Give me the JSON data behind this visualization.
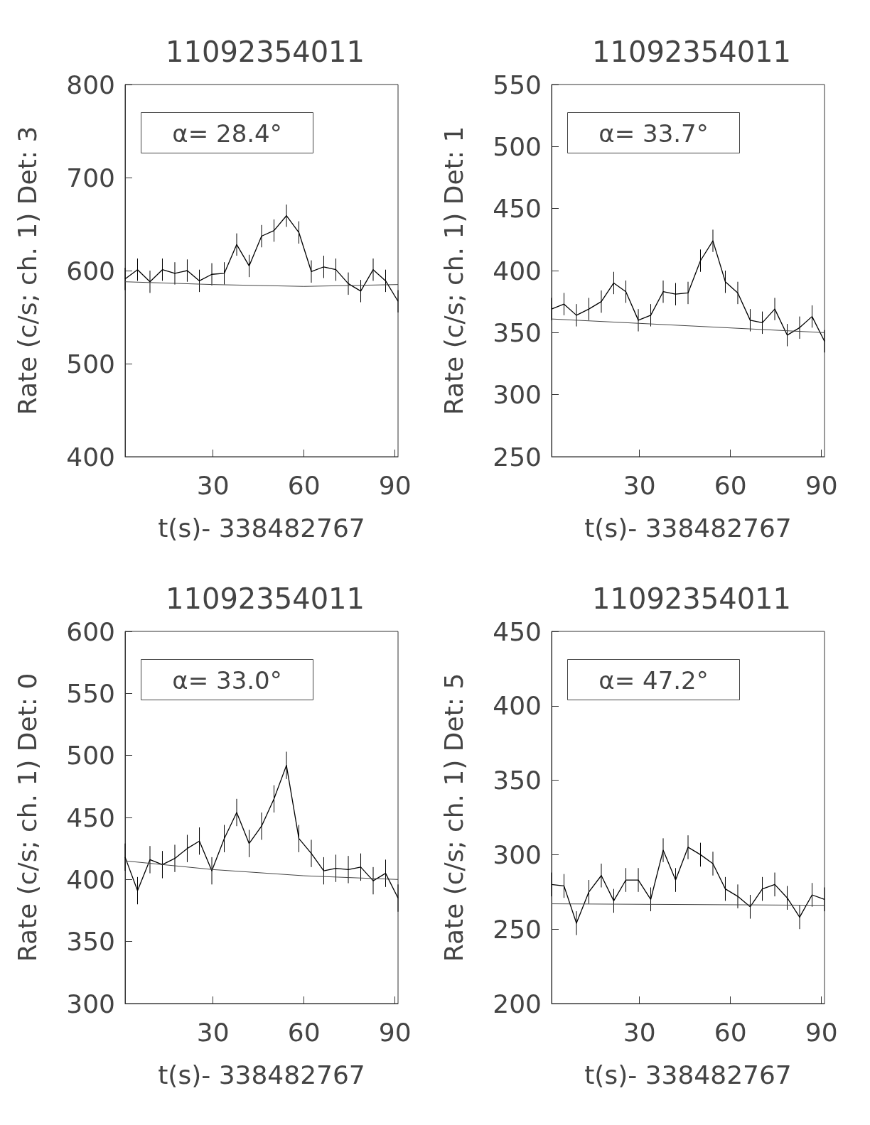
{
  "chart_data": [
    {
      "type": "line",
      "title": "11092354011",
      "xlabel": "t(s)- 338482767",
      "ylabel": "Rate (c/s; ch. 1) Det: 3",
      "annotations": [
        "α= 28.4°"
      ],
      "xlim": [
        1,
        91
      ],
      "xticks": [
        30,
        60,
        90
      ],
      "ylim": [
        400,
        800
      ],
      "yticks": [
        400,
        500,
        600,
        700,
        800
      ],
      "grid": false,
      "marker": "none",
      "line_style": "solid",
      "x": [
        1,
        5.1,
        9.2,
        13.3,
        17.4,
        21.5,
        25.5,
        29.6,
        33.7,
        37.8,
        41.9,
        46,
        50.1,
        54.2,
        58.3,
        62.4,
        66.5,
        70.5,
        74.6,
        78.7,
        82.8,
        86.9,
        91
      ],
      "series": [
        {
          "color": "#000000",
          "values": [
            591,
            601,
            588,
            601,
            597,
            600,
            589,
            596,
            597,
            628,
            605,
            637,
            643,
            659,
            641,
            599,
            604,
            601,
            586,
            578,
            601,
            589,
            567
          ],
          "errors": [
            12,
            12,
            12,
            12,
            12,
            12,
            12,
            12,
            12,
            12,
            12,
            12,
            12,
            12,
            12,
            12,
            12,
            12,
            12,
            12,
            12,
            12,
            12
          ]
        },
        {
          "type": "line",
          "color": "#444444",
          "x": [
            1,
            30,
            60,
            91
          ],
          "values": [
            588,
            585,
            583,
            585
          ]
        }
      ]
    },
    {
      "type": "line",
      "title": "11092354011",
      "xlabel": "t(s)- 338482767",
      "ylabel": "Rate (c/s; ch. 1) Det: 1",
      "annotations": [
        "α= 33.7°"
      ],
      "xlim": [
        1,
        91
      ],
      "xticks": [
        30,
        60,
        90
      ],
      "ylim": [
        250,
        550
      ],
      "yticks": [
        250,
        300,
        350,
        400,
        450,
        500,
        550
      ],
      "grid": false,
      "marker": "none",
      "line_style": "solid",
      "x": [
        1,
        5.1,
        9.2,
        13.3,
        17.4,
        21.5,
        25.5,
        29.6,
        33.7,
        37.8,
        41.9,
        46,
        50.1,
        54.2,
        58.3,
        62.4,
        66.5,
        70.5,
        74.6,
        78.7,
        82.8,
        86.9,
        91
      ],
      "series": [
        {
          "color": "#000000",
          "values": [
            369,
            373,
            364,
            369,
            375,
            390,
            383,
            360,
            364,
            383,
            381,
            382,
            408,
            424,
            391,
            382,
            360,
            358,
            369,
            348,
            354,
            363,
            343
          ],
          "errors": [
            9,
            9,
            9,
            9,
            9,
            9,
            9,
            9,
            9,
            9,
            9,
            9,
            9,
            9,
            9,
            9,
            9,
            9,
            9,
            9,
            9,
            9,
            9
          ]
        },
        {
          "type": "line",
          "color": "#444444",
          "x": [
            1,
            91
          ],
          "values": [
            361,
            350
          ]
        }
      ]
    },
    {
      "type": "line",
      "title": "11092354011",
      "xlabel": "t(s)- 338482767",
      "ylabel": "Rate (c/s; ch. 1) Det: 0",
      "annotations": [
        "α= 33.0°"
      ],
      "xlim": [
        1,
        91
      ],
      "xticks": [
        30,
        60,
        90
      ],
      "ylim": [
        300,
        600
      ],
      "yticks": [
        300,
        350,
        400,
        450,
        500,
        550,
        600
      ],
      "grid": false,
      "marker": "none",
      "line_style": "solid",
      "x": [
        1,
        5.1,
        9.2,
        13.3,
        17.4,
        21.5,
        25.5,
        29.6,
        33.7,
        37.8,
        41.9,
        46,
        50.1,
        54.2,
        58.3,
        62.4,
        66.5,
        70.5,
        74.6,
        78.7,
        82.8,
        86.9,
        91
      ],
      "series": [
        {
          "color": "#000000",
          "values": [
            418,
            391,
            416,
            412,
            417,
            425,
            431,
            407,
            433,
            454,
            429,
            443,
            465,
            492,
            433,
            421,
            407,
            409,
            408,
            410,
            399,
            405,
            385
          ],
          "errors": [
            11,
            11,
            11,
            11,
            11,
            11,
            11,
            11,
            11,
            11,
            11,
            11,
            11,
            11,
            11,
            11,
            11,
            11,
            11,
            11,
            11,
            11,
            11
          ]
        },
        {
          "type": "line",
          "color": "#444444",
          "x": [
            1,
            30,
            60,
            91
          ],
          "values": [
            415,
            408,
            403,
            400
          ]
        }
      ]
    },
    {
      "type": "line",
      "title": "11092354011",
      "xlabel": "t(s)- 338482767",
      "ylabel": "Rate (c/s; ch. 1) Det: 5",
      "annotations": [
        "α= 47.2°"
      ],
      "xlim": [
        1,
        91
      ],
      "xticks": [
        30,
        60,
        90
      ],
      "ylim": [
        200,
        450
      ],
      "yticks": [
        200,
        250,
        300,
        350,
        400,
        450
      ],
      "grid": false,
      "marker": "none",
      "line_style": "solid",
      "x": [
        1,
        5.1,
        9.2,
        13.3,
        17.4,
        21.5,
        25.5,
        29.6,
        33.7,
        37.8,
        41.9,
        46,
        50.1,
        54.2,
        58.3,
        62.4,
        66.5,
        70.5,
        74.6,
        78.7,
        82.8,
        86.9,
        91
      ],
      "series": [
        {
          "color": "#000000",
          "values": [
            280,
            279,
            254,
            275,
            286,
            269,
            283,
            283,
            270,
            303,
            283,
            305,
            300,
            294,
            277,
            272,
            265,
            277,
            280,
            271,
            258,
            273,
            270
          ],
          "errors": [
            8,
            8,
            8,
            8,
            8,
            8,
            8,
            8,
            8,
            8,
            8,
            8,
            8,
            8,
            8,
            8,
            8,
            8,
            8,
            8,
            8,
            8,
            8
          ]
        },
        {
          "type": "line",
          "color": "#444444",
          "x": [
            1,
            91
          ],
          "values": [
            267,
            266
          ]
        }
      ]
    }
  ]
}
